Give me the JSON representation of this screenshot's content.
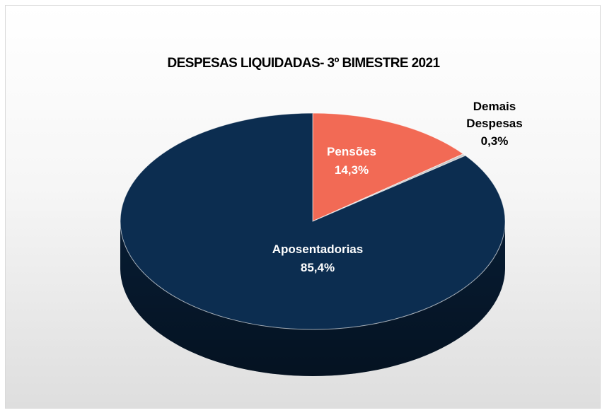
{
  "chart_data": {
    "type": "pie",
    "title": "DESPESAS LIQUIDADAS- 3º BIMESTRE 2021",
    "slices": [
      {
        "label": "Pensões",
        "value": 14.3,
        "display": "14,3%",
        "color": "#f26a55",
        "side_color": "#b84d3e",
        "label_color": "#ffffff"
      },
      {
        "label": "Demais Despesas",
        "value": 0.3,
        "display": "0,3%",
        "color": "#c9c9c9",
        "side_color": "#9a9a9a",
        "label_color": "#000000"
      },
      {
        "label": "Aposentadorias",
        "value": 85.4,
        "display": "85,4%",
        "color": "#0c2d50",
        "side_color": "#071c33",
        "label_color": "#ffffff"
      }
    ],
    "start_angle_deg": 0,
    "three_d": true
  }
}
